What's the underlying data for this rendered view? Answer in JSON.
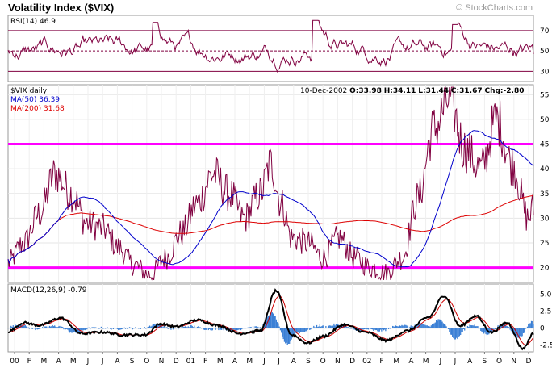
{
  "header": {
    "title": "Volatility Index ($VIX)",
    "credit": "© StockCharts.com"
  },
  "chart_data": [
    {
      "type": "line",
      "panel": "rsi",
      "label": "RSI(14)",
      "value": "46.9",
      "ylim": [
        20,
        85
      ],
      "ticks": [
        30,
        50,
        70
      ],
      "reference_lines": [
        30,
        50,
        70
      ],
      "color": "#800040"
    },
    {
      "type": "line",
      "panel": "price",
      "symbol_label": "$VIX daily",
      "ma50_label": "MA(50) 36.39",
      "ma200_label": "MA(200) 31.68",
      "ohlc_date": "10-Dec-2002",
      "ohlc_open": "O:33.98",
      "ohlc_high": "H:34.11",
      "ohlc_low": "L:31.44",
      "ohlc_close": "C:31.67",
      "ohlc_change": "Chg:-2.80",
      "ylim": [
        17,
        57
      ],
      "ticks": [
        20,
        25,
        30,
        35,
        40,
        45,
        50,
        55
      ],
      "horizontal_lines": [
        20,
        45
      ],
      "series": [
        {
          "name": "$VIX daily",
          "color": "#800040"
        },
        {
          "name": "MA(50) 36.39",
          "color": "#0000cc"
        },
        {
          "name": "MA(200) 31.68",
          "color": "#dd0000"
        }
      ],
      "key_points": {
        "x": [
          0,
          3,
          6,
          9,
          12,
          15,
          18,
          21,
          24,
          27,
          30,
          33,
          36,
          39,
          42,
          45,
          48,
          50,
          52,
          54,
          57,
          60,
          63,
          66,
          69,
          72,
          75,
          78,
          81,
          84,
          87,
          90,
          93,
          96,
          99,
          100
        ],
        "y": [
          21,
          25,
          31,
          39,
          35,
          29,
          28,
          24,
          20.5,
          18.5,
          22,
          27,
          33,
          39,
          35,
          30,
          35,
          41,
          33,
          26,
          25,
          22,
          26,
          22,
          20,
          19,
          22,
          34,
          48,
          54,
          44,
          40,
          50,
          41,
          30,
          32
        ]
      }
    },
    {
      "type": "area",
      "panel": "macd",
      "label": "MACD(12,26,9)",
      "value": "-0.79",
      "ylim": [
        -3.5,
        6.5
      ],
      "ticks": [
        "5.0",
        "2.5",
        "0",
        "-2.5"
      ],
      "series": [
        {
          "name": "MACD",
          "color": "#000000"
        },
        {
          "name": "Signal",
          "color": "#cc0000"
        },
        {
          "name": "Histogram",
          "color": "#3a7fd5"
        }
      ],
      "key_points": {
        "x": [
          0,
          3,
          6,
          10,
          14,
          18,
          22,
          26,
          29,
          32,
          36,
          40,
          44,
          48,
          51,
          54,
          57,
          60,
          64,
          68,
          72,
          76,
          80,
          83,
          86,
          89,
          92,
          95,
          98,
          100
        ],
        "y": [
          -0.5,
          0.8,
          0.4,
          1.5,
          -0.8,
          -0.6,
          -1.0,
          -1.0,
          0.6,
          0.2,
          1.2,
          0.4,
          -0.8,
          -0.4,
          5.5,
          -1.0,
          -2.2,
          -1.2,
          0.5,
          -0.6,
          -1.8,
          -0.4,
          1.6,
          4.8,
          0.3,
          1.8,
          -0.6,
          0.8,
          -3.0,
          -0.8
        ]
      }
    }
  ],
  "x_axis": {
    "labels": [
      "00",
      "F",
      "M",
      "A",
      "M",
      "J",
      "J",
      "A",
      "S",
      "O",
      "N",
      "D",
      "01",
      "F",
      "M",
      "A",
      "M",
      "J",
      "J",
      "A",
      "S",
      "O",
      "N",
      "D",
      "02",
      "F",
      "M",
      "A",
      "M",
      "J",
      "J",
      "A",
      "S",
      "O",
      "N",
      "D"
    ]
  }
}
